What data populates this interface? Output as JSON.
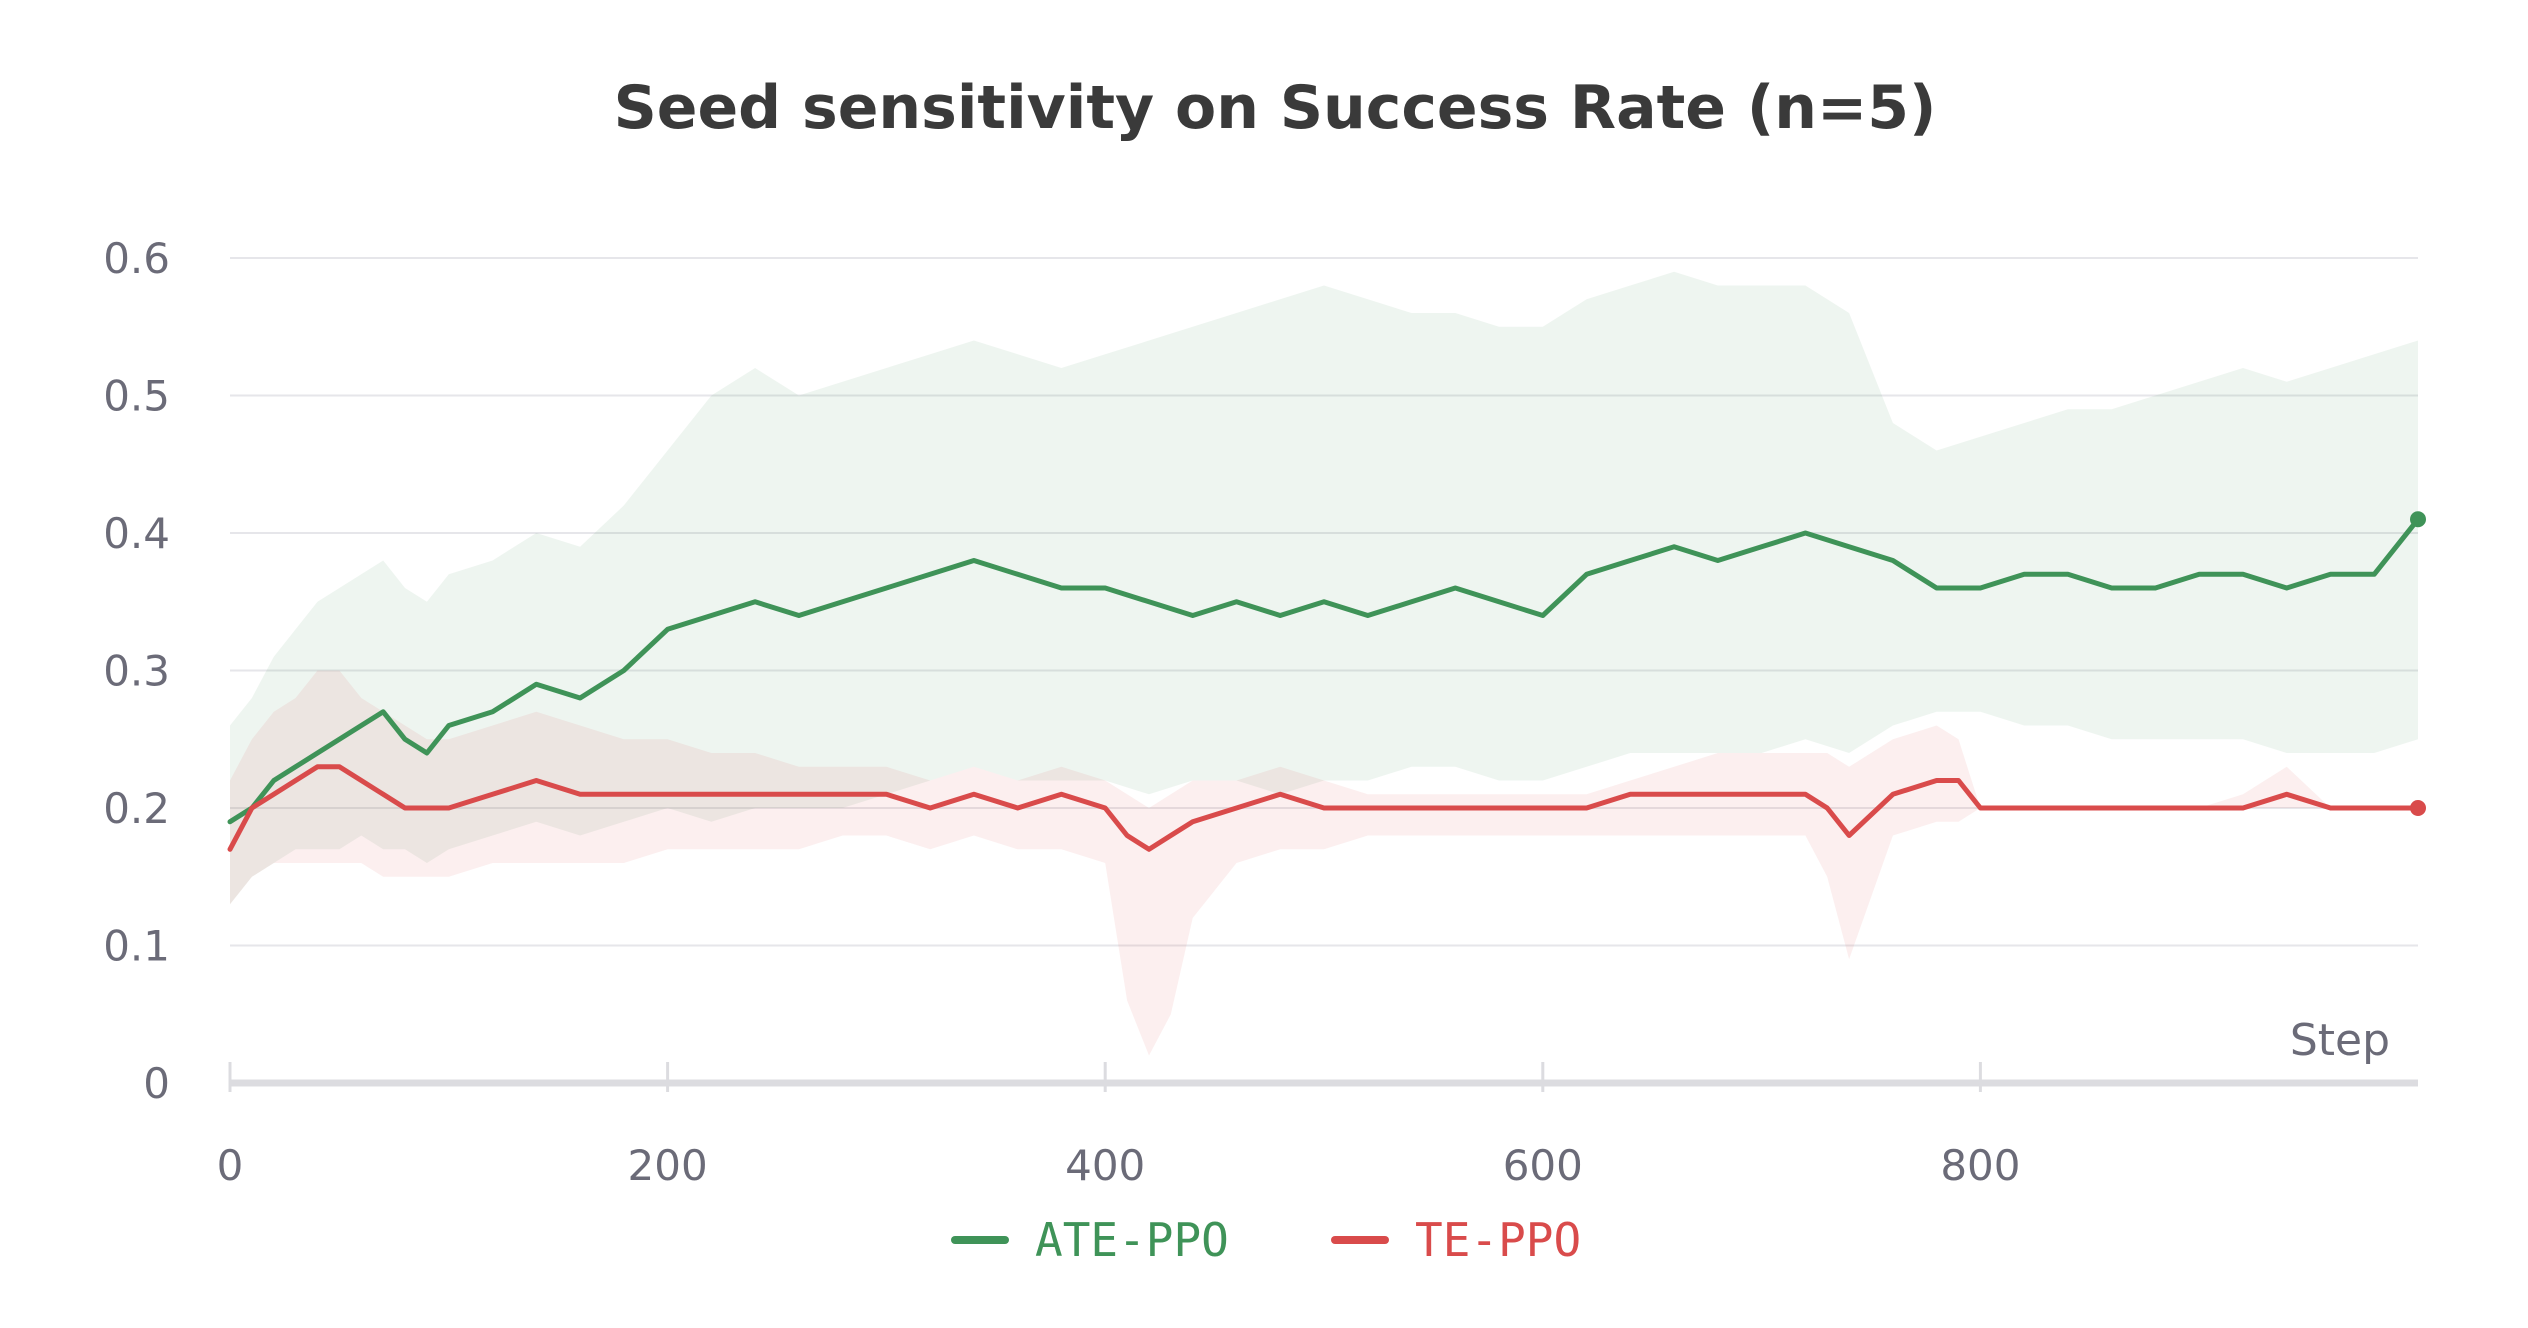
{
  "chart_data": {
    "type": "line",
    "title": "Seed sensitivity on Success Rate (n=5)",
    "xlabel": "Step",
    "ylabel": "",
    "xlim": [
      0,
      1000
    ],
    "ylim": [
      0,
      0.6
    ],
    "xticks": [
      0,
      200,
      400,
      600,
      800
    ],
    "xtick_labels": [
      "0",
      "200",
      "400",
      "600",
      "800"
    ],
    "yticks": [
      0,
      0.1,
      0.2,
      0.3,
      0.4,
      0.5,
      0.6
    ],
    "ytick_labels": [
      "0",
      "0.1",
      "0.2",
      "0.3",
      "0.4",
      "0.5",
      "0.6"
    ],
    "grid": true,
    "legend_position": "bottom-center",
    "series": [
      {
        "name": "ATE-PPO",
        "color": "#3f9358",
        "x": [
          0,
          10,
          20,
          30,
          40,
          50,
          60,
          70,
          80,
          90,
          100,
          120,
          140,
          160,
          180,
          200,
          220,
          240,
          260,
          280,
          300,
          320,
          340,
          360,
          380,
          400,
          420,
          440,
          460,
          480,
          500,
          520,
          540,
          560,
          580,
          600,
          620,
          640,
          660,
          680,
          700,
          720,
          740,
          760,
          780,
          800,
          820,
          840,
          860,
          880,
          900,
          920,
          940,
          960,
          980,
          1000
        ],
        "y": [
          0.19,
          0.2,
          0.22,
          0.23,
          0.24,
          0.25,
          0.26,
          0.27,
          0.25,
          0.24,
          0.26,
          0.27,
          0.29,
          0.28,
          0.3,
          0.33,
          0.34,
          0.35,
          0.34,
          0.35,
          0.36,
          0.37,
          0.38,
          0.37,
          0.36,
          0.36,
          0.35,
          0.34,
          0.35,
          0.34,
          0.35,
          0.34,
          0.35,
          0.36,
          0.35,
          0.34,
          0.37,
          0.38,
          0.39,
          0.38,
          0.39,
          0.4,
          0.39,
          0.38,
          0.36,
          0.36,
          0.37,
          0.37,
          0.36,
          0.36,
          0.37,
          0.37,
          0.36,
          0.37,
          0.37,
          0.41
        ],
        "band_low": [
          0.13,
          0.15,
          0.16,
          0.17,
          0.17,
          0.17,
          0.18,
          0.17,
          0.17,
          0.16,
          0.17,
          0.18,
          0.19,
          0.18,
          0.19,
          0.2,
          0.19,
          0.2,
          0.2,
          0.2,
          0.21,
          0.22,
          0.23,
          0.22,
          0.22,
          0.22,
          0.21,
          0.22,
          0.22,
          0.21,
          0.22,
          0.22,
          0.23,
          0.23,
          0.22,
          0.22,
          0.23,
          0.24,
          0.24,
          0.24,
          0.24,
          0.25,
          0.24,
          0.26,
          0.27,
          0.27,
          0.26,
          0.26,
          0.25,
          0.25,
          0.25,
          0.25,
          0.24,
          0.24,
          0.24,
          0.25
        ],
        "band_high": [
          0.26,
          0.28,
          0.31,
          0.33,
          0.35,
          0.36,
          0.37,
          0.38,
          0.36,
          0.35,
          0.37,
          0.38,
          0.4,
          0.39,
          0.42,
          0.46,
          0.5,
          0.52,
          0.5,
          0.51,
          0.52,
          0.53,
          0.54,
          0.53,
          0.52,
          0.53,
          0.54,
          0.55,
          0.56,
          0.57,
          0.58,
          0.57,
          0.56,
          0.56,
          0.55,
          0.55,
          0.57,
          0.58,
          0.59,
          0.58,
          0.58,
          0.58,
          0.56,
          0.48,
          0.46,
          0.47,
          0.48,
          0.49,
          0.49,
          0.5,
          0.51,
          0.52,
          0.51,
          0.52,
          0.53,
          0.54
        ]
      },
      {
        "name": "TE-PPO",
        "color": "#d94b4b",
        "x": [
          0,
          10,
          20,
          30,
          40,
          50,
          60,
          70,
          80,
          90,
          100,
          120,
          140,
          160,
          180,
          200,
          220,
          240,
          260,
          280,
          300,
          320,
          340,
          360,
          380,
          400,
          410,
          420,
          430,
          440,
          460,
          480,
          500,
          520,
          540,
          560,
          580,
          600,
          620,
          640,
          660,
          680,
          700,
          720,
          730,
          740,
          760,
          780,
          790,
          800,
          820,
          840,
          860,
          880,
          900,
          920,
          940,
          960,
          980,
          1000
        ],
        "y": [
          0.17,
          0.2,
          0.21,
          0.22,
          0.23,
          0.23,
          0.22,
          0.21,
          0.2,
          0.2,
          0.2,
          0.21,
          0.22,
          0.21,
          0.21,
          0.21,
          0.21,
          0.21,
          0.21,
          0.21,
          0.21,
          0.2,
          0.21,
          0.2,
          0.21,
          0.2,
          0.18,
          0.17,
          0.18,
          0.19,
          0.2,
          0.21,
          0.2,
          0.2,
          0.2,
          0.2,
          0.2,
          0.2,
          0.2,
          0.21,
          0.21,
          0.21,
          0.21,
          0.21,
          0.2,
          0.18,
          0.21,
          0.22,
          0.22,
          0.2,
          0.2,
          0.2,
          0.2,
          0.2,
          0.2,
          0.2,
          0.21,
          0.2,
          0.2,
          0.2
        ],
        "band_low": [
          0.13,
          0.15,
          0.16,
          0.16,
          0.16,
          0.16,
          0.16,
          0.15,
          0.15,
          0.15,
          0.15,
          0.16,
          0.16,
          0.16,
          0.16,
          0.17,
          0.17,
          0.17,
          0.17,
          0.18,
          0.18,
          0.17,
          0.18,
          0.17,
          0.17,
          0.16,
          0.06,
          0.02,
          0.05,
          0.12,
          0.16,
          0.17,
          0.17,
          0.18,
          0.18,
          0.18,
          0.18,
          0.18,
          0.18,
          0.18,
          0.18,
          0.18,
          0.18,
          0.18,
          0.15,
          0.09,
          0.18,
          0.19,
          0.19,
          0.2,
          0.2,
          0.2,
          0.2,
          0.2,
          0.2,
          0.2,
          0.2,
          0.2,
          0.2,
          0.2
        ],
        "band_high": [
          0.22,
          0.25,
          0.27,
          0.28,
          0.3,
          0.3,
          0.28,
          0.27,
          0.26,
          0.25,
          0.25,
          0.26,
          0.27,
          0.26,
          0.25,
          0.25,
          0.24,
          0.24,
          0.23,
          0.23,
          0.23,
          0.22,
          0.23,
          0.22,
          0.23,
          0.22,
          0.21,
          0.2,
          0.21,
          0.22,
          0.22,
          0.23,
          0.22,
          0.21,
          0.21,
          0.21,
          0.21,
          0.21,
          0.21,
          0.22,
          0.23,
          0.24,
          0.24,
          0.24,
          0.24,
          0.23,
          0.25,
          0.26,
          0.25,
          0.2,
          0.2,
          0.2,
          0.2,
          0.2,
          0.2,
          0.21,
          0.23,
          0.2,
          0.2,
          0.2
        ]
      }
    ]
  }
}
